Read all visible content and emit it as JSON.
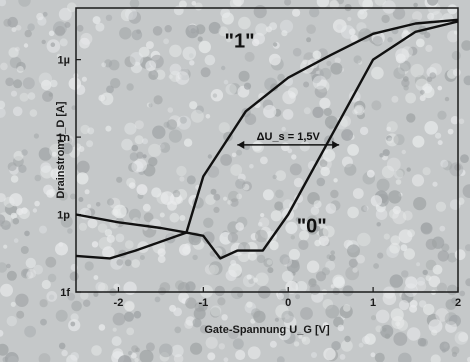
{
  "chart_data": {
    "type": "line",
    "xlabel": "Gate-Spannung U_G [V]",
    "ylabel": "Drainstrom I_D [A]",
    "x_ticks": [
      "-2",
      "-1",
      "0",
      "1",
      "2"
    ],
    "y_ticks": [
      "1f",
      "1p",
      "1n",
      "1µ"
    ],
    "xlim": [
      -2.5,
      2
    ],
    "ylim": [
      1e-15,
      0.0001
    ],
    "y_scale": "log",
    "series": [
      {
        "name": "\"1\"",
        "x": [
          -2.5,
          -2.0,
          -1.5,
          -1.2,
          -1.0,
          -0.5,
          0.0,
          0.5,
          1.0,
          1.5,
          2.0
        ],
        "y": [
          1e-12,
          5e-13,
          3e-13,
          2e-13,
          3e-11,
          1e-08,
          2e-07,
          1.5e-06,
          1e-05,
          2.5e-05,
          3.5e-05
        ]
      },
      {
        "name": "\"0\"",
        "x": [
          -2.5,
          -2.1,
          -1.8,
          -1.2,
          -1.0,
          -0.8,
          -0.6,
          -0.3,
          0.0,
          0.5,
          1.0,
          1.5,
          2.0
        ],
        "y": [
          2.5e-14,
          2e-14,
          4e-14,
          2e-13,
          1.5e-13,
          2e-14,
          4e-14,
          4e-14,
          1e-12,
          1e-09,
          1e-06,
          1.2e-05,
          3e-05
        ]
      }
    ],
    "annotations": [
      {
        "text": "ΔU_s = 1,5V",
        "from_x": -0.6,
        "to_x": 0.6,
        "y": 5e-10
      }
    ],
    "colors": {
      "line": "#111111",
      "background": "#c9cccd"
    }
  }
}
